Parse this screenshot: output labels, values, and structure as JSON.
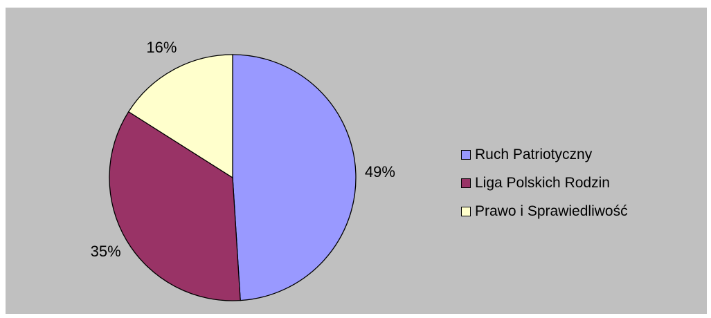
{
  "chart_data": {
    "type": "pie",
    "title": "",
    "slices": [
      {
        "name": "Ruch Patriotyczny",
        "value": 49,
        "label": "49%",
        "color": "#9999ff"
      },
      {
        "name": "Liga Polskich Rodzin",
        "value": 35,
        "label": "35%",
        "color": "#993366"
      },
      {
        "name": "Prawo i Sprawiedliwość",
        "value": 16,
        "label": "16%",
        "color": "#ffffcc"
      }
    ],
    "legend_position": "right",
    "background_color": "#c0c0c0"
  },
  "legend": {
    "items": [
      {
        "label": "Ruch Patriotyczny",
        "color": "#9999ff"
      },
      {
        "label": "Liga Polskich Rodzin",
        "color": "#993366"
      },
      {
        "label": "Prawo i Sprawiedliwość",
        "color": "#ffffcc"
      }
    ]
  }
}
